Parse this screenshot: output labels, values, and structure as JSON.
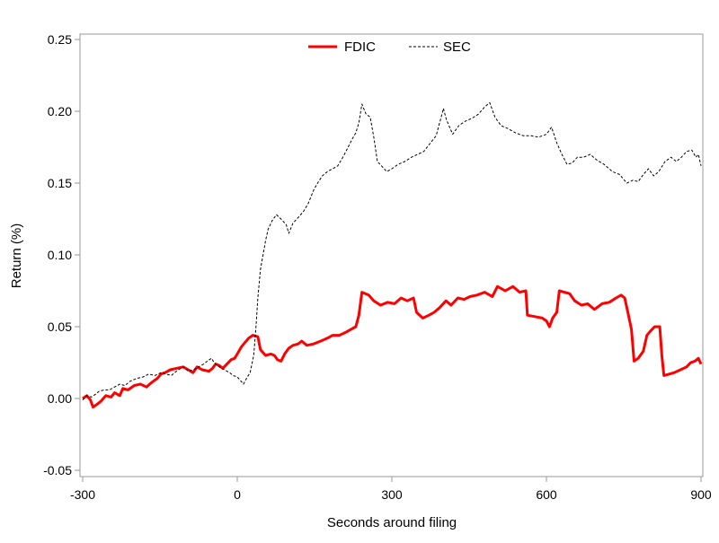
{
  "chart_data": {
    "type": "line",
    "title": "",
    "xlabel": "Seconds around filing",
    "ylabel": "Return (%)",
    "xlim": [
      -305,
      905
    ],
    "ylim": [
      -0.055,
      0.255
    ],
    "xticks": [
      -300,
      0,
      300,
      600,
      900
    ],
    "xtick_labels": [
      "-300",
      "0",
      "300",
      "600",
      "900"
    ],
    "yticks": [
      -0.05,
      0.0,
      0.05,
      0.1,
      0.15,
      0.2,
      0.25
    ],
    "ytick_labels": [
      "-0.05",
      "0.00",
      "0.05",
      "0.10",
      "0.15",
      "0.20",
      "0.25"
    ],
    "grid": false,
    "legend": "top-center",
    "series": [
      {
        "name": "FDIC",
        "color": "#ff0000",
        "style": "solid",
        "points": [
          [
            -300,
            0.0
          ],
          [
            -292,
            0.002
          ],
          [
            -285,
            -0.001
          ],
          [
            -280,
            -0.006
          ],
          [
            -272,
            -0.004
          ],
          [
            -265,
            -0.002
          ],
          [
            -255,
            0.002
          ],
          [
            -245,
            0.001
          ],
          [
            -238,
            0.004
          ],
          [
            -228,
            0.002
          ],
          [
            -222,
            0.007
          ],
          [
            -212,
            0.006
          ],
          [
            -200,
            0.009
          ],
          [
            -188,
            0.01
          ],
          [
            -176,
            0.008
          ],
          [
            -170,
            0.01
          ],
          [
            -163,
            0.012
          ],
          [
            -155,
            0.014
          ],
          [
            -148,
            0.017
          ],
          [
            -140,
            0.018
          ],
          [
            -130,
            0.02
          ],
          [
            -118,
            0.021
          ],
          [
            -105,
            0.022
          ],
          [
            -95,
            0.02
          ],
          [
            -86,
            0.018
          ],
          [
            -78,
            0.022
          ],
          [
            -68,
            0.02
          ],
          [
            -55,
            0.019
          ],
          [
            -48,
            0.021
          ],
          [
            -42,
            0.024
          ],
          [
            -35,
            0.023
          ],
          [
            -28,
            0.021
          ],
          [
            -20,
            0.024
          ],
          [
            -12,
            0.027
          ],
          [
            -5,
            0.028
          ],
          [
            0,
            0.031
          ],
          [
            8,
            0.036
          ],
          [
            15,
            0.039
          ],
          [
            22,
            0.042
          ],
          [
            30,
            0.044
          ],
          [
            40,
            0.043
          ],
          [
            45,
            0.034
          ],
          [
            55,
            0.03
          ],
          [
            65,
            0.031
          ],
          [
            72,
            0.03
          ],
          [
            78,
            0.027
          ],
          [
            85,
            0.026
          ],
          [
            92,
            0.031
          ],
          [
            100,
            0.035
          ],
          [
            108,
            0.037
          ],
          [
            118,
            0.038
          ],
          [
            125,
            0.04
          ],
          [
            135,
            0.037
          ],
          [
            148,
            0.038
          ],
          [
            162,
            0.04
          ],
          [
            175,
            0.042
          ],
          [
            185,
            0.044
          ],
          [
            198,
            0.044
          ],
          [
            210,
            0.046
          ],
          [
            220,
            0.048
          ],
          [
            230,
            0.05
          ],
          [
            236,
            0.058
          ],
          [
            242,
            0.074
          ],
          [
            255,
            0.072
          ],
          [
            265,
            0.068
          ],
          [
            278,
            0.065
          ],
          [
            292,
            0.067
          ],
          [
            305,
            0.066
          ],
          [
            318,
            0.07
          ],
          [
            330,
            0.068
          ],
          [
            342,
            0.07
          ],
          [
            348,
            0.06
          ],
          [
            360,
            0.056
          ],
          [
            372,
            0.058
          ],
          [
            382,
            0.06
          ],
          [
            392,
            0.063
          ],
          [
            405,
            0.068
          ],
          [
            415,
            0.065
          ],
          [
            428,
            0.07
          ],
          [
            440,
            0.069
          ],
          [
            452,
            0.071
          ],
          [
            465,
            0.072
          ],
          [
            480,
            0.074
          ],
          [
            495,
            0.071
          ],
          [
            505,
            0.078
          ],
          [
            520,
            0.075
          ],
          [
            535,
            0.078
          ],
          [
            548,
            0.074
          ],
          [
            560,
            0.075
          ],
          [
            563,
            0.058
          ],
          [
            578,
            0.057
          ],
          [
            592,
            0.056
          ],
          [
            600,
            0.054
          ],
          [
            606,
            0.05
          ],
          [
            612,
            0.056
          ],
          [
            620,
            0.06
          ],
          [
            625,
            0.075
          ],
          [
            645,
            0.073
          ],
          [
            655,
            0.068
          ],
          [
            668,
            0.065
          ],
          [
            680,
            0.066
          ],
          [
            693,
            0.062
          ],
          [
            708,
            0.066
          ],
          [
            722,
            0.067
          ],
          [
            735,
            0.07
          ],
          [
            745,
            0.072
          ],
          [
            752,
            0.07
          ],
          [
            758,
            0.06
          ],
          [
            765,
            0.048
          ],
          [
            770,
            0.026
          ],
          [
            778,
            0.028
          ],
          [
            788,
            0.033
          ],
          [
            795,
            0.044
          ],
          [
            802,
            0.047
          ],
          [
            810,
            0.05
          ],
          [
            820,
            0.05
          ],
          [
            824,
            0.03
          ],
          [
            828,
            0.016
          ],
          [
            838,
            0.017
          ],
          [
            848,
            0.018
          ],
          [
            860,
            0.02
          ],
          [
            872,
            0.022
          ],
          [
            880,
            0.025
          ],
          [
            888,
            0.026
          ],
          [
            895,
            0.028
          ],
          [
            900,
            0.024
          ]
        ]
      },
      {
        "name": "SEC",
        "color": "#000000",
        "style": "dashed",
        "points": [
          [
            -300,
            -0.001
          ],
          [
            -292,
            0.002
          ],
          [
            -283,
            0.001
          ],
          [
            -275,
            0.003
          ],
          [
            -268,
            0.005
          ],
          [
            -258,
            0.006
          ],
          [
            -248,
            0.006
          ],
          [
            -238,
            0.008
          ],
          [
            -228,
            0.01
          ],
          [
            -218,
            0.009
          ],
          [
            -208,
            0.012
          ],
          [
            -195,
            0.014
          ],
          [
            -183,
            0.015
          ],
          [
            -172,
            0.017
          ],
          [
            -160,
            0.016
          ],
          [
            -148,
            0.018
          ],
          [
            -138,
            0.017
          ],
          [
            -128,
            0.016
          ],
          [
            -118,
            0.019
          ],
          [
            -105,
            0.022
          ],
          [
            -95,
            0.019
          ],
          [
            -85,
            0.02
          ],
          [
            -75,
            0.022
          ],
          [
            -65,
            0.024
          ],
          [
            -58,
            0.026
          ],
          [
            -50,
            0.028
          ],
          [
            -45,
            0.025
          ],
          [
            -35,
            0.022
          ],
          [
            -25,
            0.02
          ],
          [
            -15,
            0.018
          ],
          [
            -8,
            0.016
          ],
          [
            0,
            0.015
          ],
          [
            5,
            0.013
          ],
          [
            12,
            0.01
          ],
          [
            18,
            0.014
          ],
          [
            25,
            0.018
          ],
          [
            32,
            0.03
          ],
          [
            36,
            0.048
          ],
          [
            40,
            0.07
          ],
          [
            45,
            0.09
          ],
          [
            50,
            0.1
          ],
          [
            55,
            0.11
          ],
          [
            60,
            0.118
          ],
          [
            68,
            0.124
          ],
          [
            76,
            0.128
          ],
          [
            85,
            0.125
          ],
          [
            95,
            0.121
          ],
          [
            100,
            0.115
          ],
          [
            108,
            0.122
          ],
          [
            118,
            0.126
          ],
          [
            128,
            0.13
          ],
          [
            138,
            0.136
          ],
          [
            148,
            0.145
          ],
          [
            156,
            0.15
          ],
          [
            165,
            0.155
          ],
          [
            175,
            0.158
          ],
          [
            185,
            0.16
          ],
          [
            195,
            0.162
          ],
          [
            205,
            0.168
          ],
          [
            215,
            0.175
          ],
          [
            222,
            0.18
          ],
          [
            230,
            0.185
          ],
          [
            236,
            0.192
          ],
          [
            242,
            0.205
          ],
          [
            250,
            0.198
          ],
          [
            258,
            0.196
          ],
          [
            265,
            0.182
          ],
          [
            272,
            0.165
          ],
          [
            280,
            0.162
          ],
          [
            290,
            0.158
          ],
          [
            300,
            0.16
          ],
          [
            312,
            0.163
          ],
          [
            325,
            0.165
          ],
          [
            338,
            0.168
          ],
          [
            350,
            0.17
          ],
          [
            362,
            0.172
          ],
          [
            375,
            0.178
          ],
          [
            386,
            0.183
          ],
          [
            395,
            0.195
          ],
          [
            400,
            0.202
          ],
          [
            406,
            0.194
          ],
          [
            418,
            0.184
          ],
          [
            430,
            0.19
          ],
          [
            442,
            0.193
          ],
          [
            455,
            0.195
          ],
          [
            468,
            0.198
          ],
          [
            480,
            0.203
          ],
          [
            490,
            0.206
          ],
          [
            500,
            0.196
          ],
          [
            512,
            0.19
          ],
          [
            525,
            0.188
          ],
          [
            540,
            0.185
          ],
          [
            555,
            0.183
          ],
          [
            570,
            0.183
          ],
          [
            585,
            0.182
          ],
          [
            600,
            0.184
          ],
          [
            610,
            0.189
          ],
          [
            620,
            0.178
          ],
          [
            630,
            0.17
          ],
          [
            640,
            0.163
          ],
          [
            650,
            0.164
          ],
          [
            660,
            0.168
          ],
          [
            672,
            0.168
          ],
          [
            685,
            0.17
          ],
          [
            698,
            0.166
          ],
          [
            712,
            0.163
          ],
          [
            728,
            0.158
          ],
          [
            742,
            0.156
          ],
          [
            756,
            0.15
          ],
          [
            768,
            0.152
          ],
          [
            778,
            0.151
          ],
          [
            788,
            0.156
          ],
          [
            798,
            0.16
          ],
          [
            808,
            0.155
          ],
          [
            818,
            0.158
          ],
          [
            830,
            0.165
          ],
          [
            842,
            0.168
          ],
          [
            852,
            0.165
          ],
          [
            862,
            0.168
          ],
          [
            872,
            0.172
          ],
          [
            882,
            0.173
          ],
          [
            890,
            0.168
          ],
          [
            895,
            0.17
          ],
          [
            900,
            0.162
          ]
        ]
      }
    ]
  }
}
